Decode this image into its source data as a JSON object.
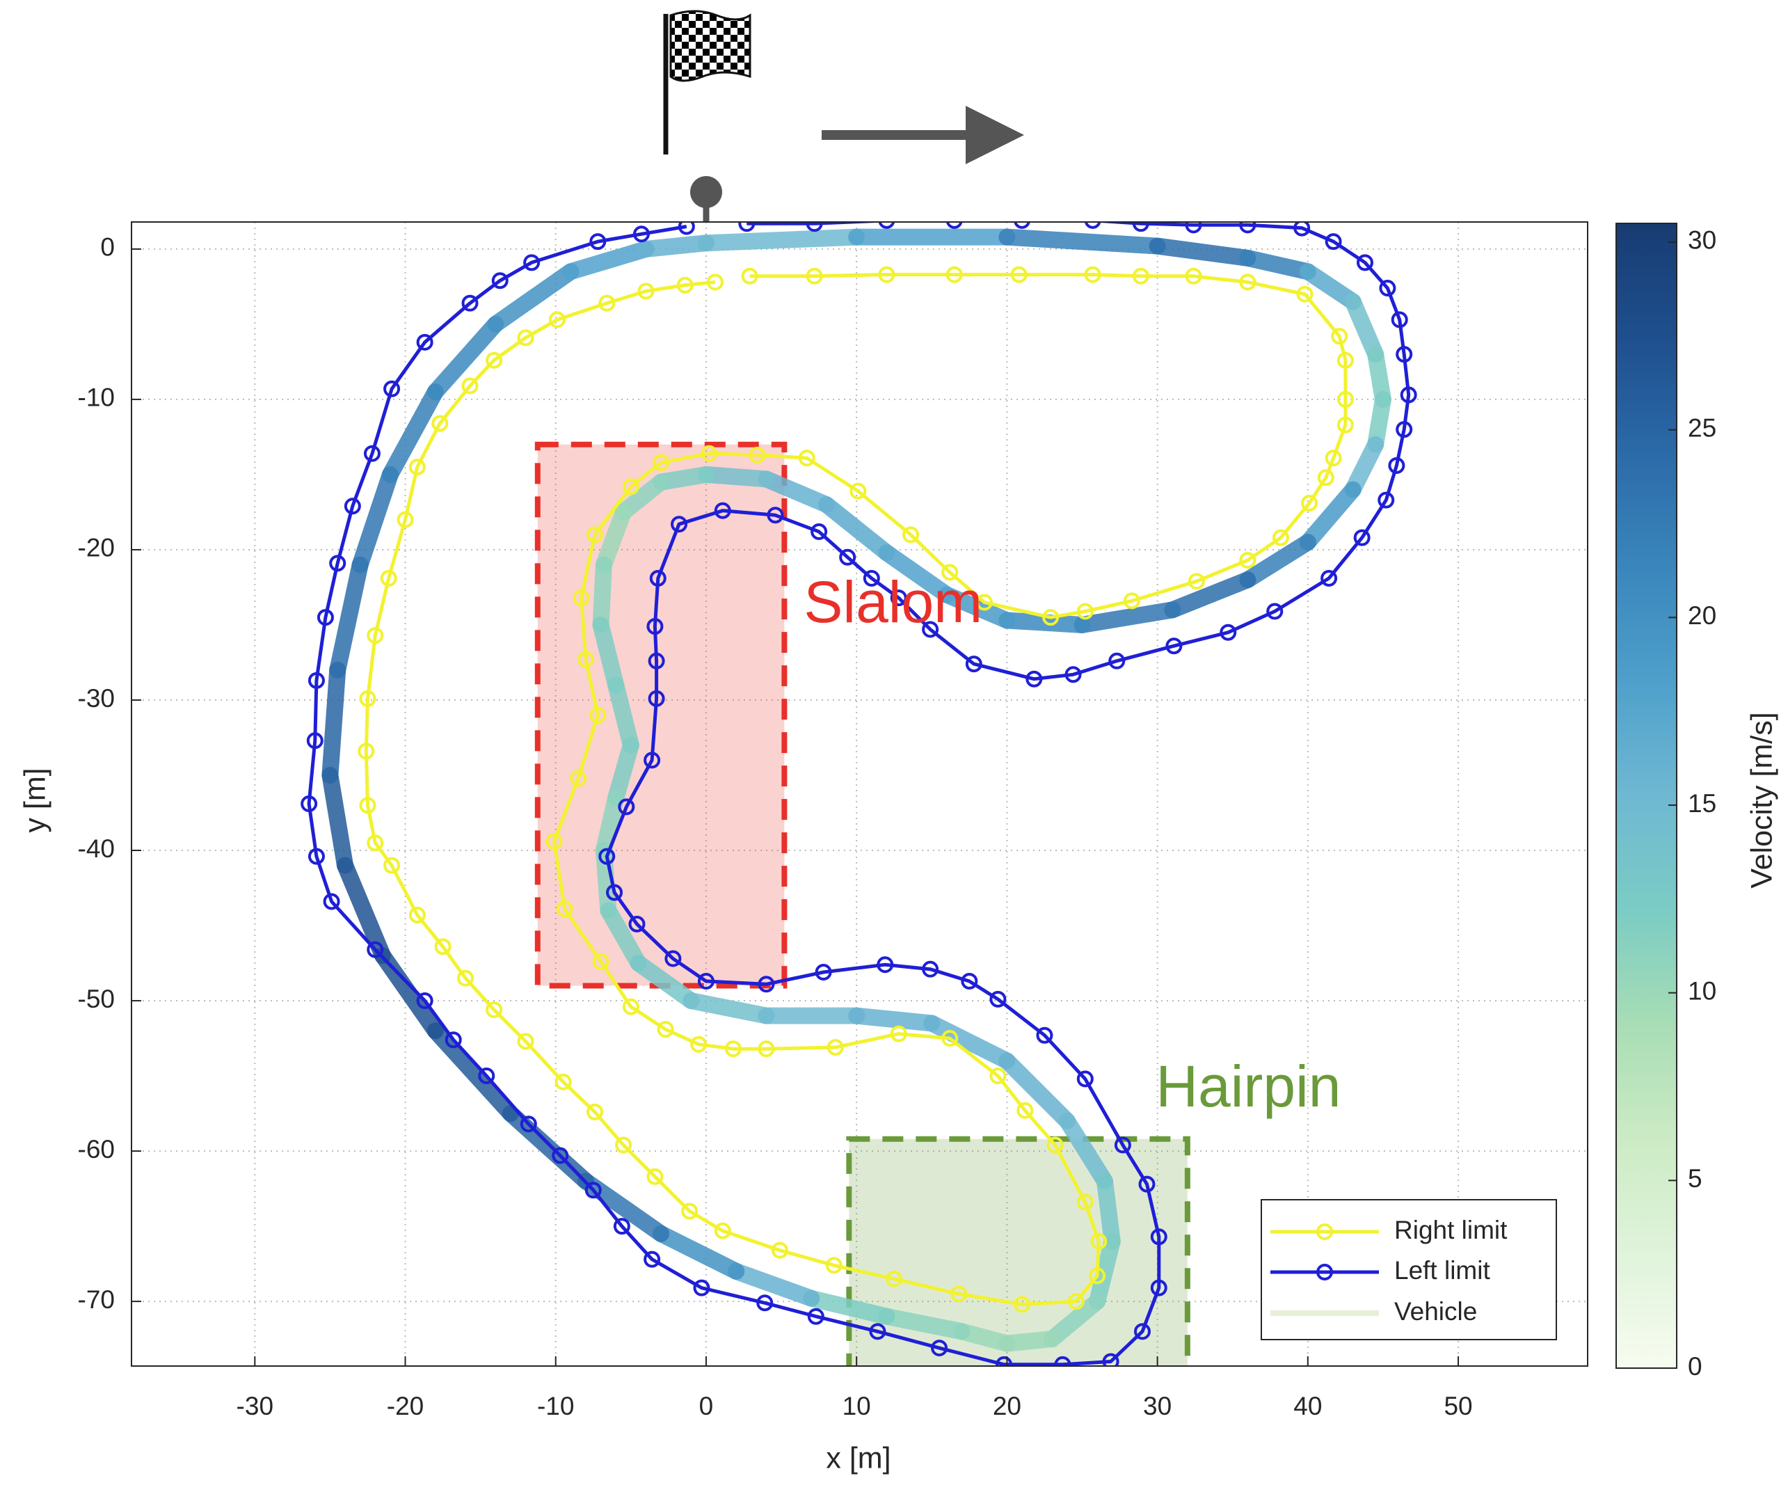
{
  "chart_data": {
    "type": "line",
    "xlabel": "x [m]",
    "ylabel": "y [m]",
    "xlim": [
      -38.2,
      58.6
    ],
    "ylim": [
      -74.3,
      1.8
    ],
    "xticks": [
      -30,
      -20,
      -10,
      0,
      10,
      20,
      30,
      40,
      50
    ],
    "yticks": [
      0,
      -10,
      -20,
      -30,
      -40,
      -50,
      -60,
      -70
    ],
    "grid": true,
    "legend": "lower right",
    "colorbar": {
      "label": "Velocity [m/s]",
      "lim": [
        0,
        30.5
      ],
      "ticks": [
        0,
        5,
        10,
        15,
        20,
        25,
        30
      ],
      "colormap": [
        "#f7fcf0",
        "#e0f3db",
        "#ccebc5",
        "#a8ddb5",
        "#7bccc4",
        "#6fb8d2",
        "#4ea0cb",
        "#3a86bc",
        "#2b6aa8",
        "#1f4f8e",
        "#173c72"
      ]
    },
    "regions": [
      {
        "label": "Slalom",
        "color": "#e8302a",
        "x": [
          -11.2,
          5.2
        ],
        "y": [
          -49,
          -13
        ]
      },
      {
        "label": "Hairpin",
        "color": "#6a9a3a",
        "x": [
          9.5,
          32
        ],
        "y": [
          -74.5,
          -59.2
        ]
      }
    ],
    "series": [
      {
        "name": "Right limit",
        "color": "#f2f230",
        "marker": "o",
        "x": [
          2.9,
          7.2,
          12,
          16.5,
          20.8,
          25.7,
          28.9,
          32.4,
          36,
          39.8,
          42.1,
          42.5,
          42.5,
          42.5,
          41.7,
          41.2,
          40.1,
          38.2,
          36,
          32.6,
          28.3,
          25.2,
          22.9,
          18.5,
          16.2,
          13.6,
          10.1,
          6.7,
          3.4,
          0.2,
          -3,
          -5,
          -7.4,
          -8.3,
          -8,
          -7.2,
          -8.5,
          -10.1,
          -9.4,
          -7,
          -5,
          -2.7,
          -0.5,
          1.8,
          4,
          8.6,
          12.8,
          16.2,
          19.4,
          21.2,
          23.2,
          25.2,
          26.1,
          26,
          24.6,
          21,
          16.8,
          12.5,
          8.5,
          4.9,
          1.1,
          -1.1,
          -3.4,
          -5.5,
          -7.4,
          -9.5,
          -12,
          -14.1,
          -16,
          -17.5,
          -19.2,
          -20.9,
          -22,
          -22.5,
          -22.6,
          -22.5,
          -22,
          -21.1,
          -20,
          -19.2,
          -17.7,
          -15.7,
          -14.1,
          -12,
          -9.9,
          -6.6,
          -4,
          -1.4,
          0.6
        ],
        "y": [
          -1.8,
          -1.8,
          -1.7,
          -1.7,
          -1.7,
          -1.7,
          -1.8,
          -1.8,
          -2.2,
          -3,
          -5.8,
          -7.4,
          -10,
          -11.7,
          -13.9,
          -15.2,
          -16.9,
          -19.2,
          -20.7,
          -22.1,
          -23.4,
          -24.1,
          -24.5,
          -23.5,
          -21.5,
          -19,
          -16.1,
          -13.9,
          -13.7,
          -13.6,
          -14.2,
          -15.8,
          -19,
          -23.2,
          -27.3,
          -31,
          -35.2,
          -39.4,
          -43.9,
          -47.4,
          -50.4,
          -51.9,
          -52.9,
          -53.2,
          -53.2,
          -53.1,
          -52.2,
          -52.5,
          -55,
          -57.3,
          -59.6,
          -63.4,
          -66,
          -68.3,
          -70,
          -70.2,
          -69.5,
          -68.5,
          -67.6,
          -66.6,
          -65.3,
          -64,
          -61.7,
          -59.6,
          -57.4,
          -55.4,
          -52.7,
          -50.6,
          -48.5,
          -46.4,
          -44.3,
          -41,
          -39.5,
          -37,
          -33.4,
          -29.9,
          -25.7,
          -21.9,
          -18,
          -14.5,
          -11.6,
          -9.1,
          -7.4,
          -5.9,
          -4.7,
          -3.6,
          -2.8,
          -2.4,
          -2.2
        ]
      },
      {
        "name": "Left limit",
        "color": "#1f1fd6",
        "marker": "o",
        "x": [
          2.7,
          7.2,
          12,
          16.5,
          21,
          25.7,
          28.9,
          32.4,
          36,
          39.6,
          41.7,
          43.8,
          45.3,
          46.1,
          46.4,
          46.7,
          46.4,
          45.9,
          45.2,
          43.6,
          41.4,
          37.8,
          34.7,
          31.1,
          27.3,
          24.4,
          21.8,
          17.8,
          14.9,
          12.8,
          11,
          9.4,
          7.5,
          4.6,
          1.1,
          -1.8,
          -3.2,
          -3.4,
          -3.3,
          -3.3,
          -3.6,
          -5.3,
          -6.6,
          -6.1,
          -4.6,
          -2.2,
          0,
          4,
          7.8,
          11.9,
          14.9,
          17.5,
          19.4,
          22.5,
          25.2,
          27.7,
          29.3,
          30.1,
          30.1,
          29,
          26.9,
          23.7,
          19.8,
          15.5,
          11.4,
          7.3,
          3.9,
          -0.3,
          -3.6,
          -5.6,
          -7.5,
          -9.7,
          -11.8,
          -14.6,
          -16.8,
          -18.7,
          -22,
          -24.9,
          -25.9,
          -26.4,
          -26,
          -25.9,
          -25.3,
          -24.5,
          -23.5,
          -22.2,
          -20.9,
          -18.7,
          -15.7,
          -13.7,
          -11.6,
          -7.2,
          -4.3,
          -1.3
        ],
        "y": [
          1.7,
          1.7,
          1.9,
          1.9,
          1.9,
          1.9,
          1.7,
          1.6,
          1.6,
          1.4,
          0.5,
          -0.9,
          -2.6,
          -4.7,
          -7,
          -9.7,
          -12,
          -14.4,
          -16.7,
          -19.2,
          -21.9,
          -24.1,
          -25.5,
          -26.4,
          -27.4,
          -28.3,
          -28.6,
          -27.6,
          -25.3,
          -23.2,
          -21.9,
          -20.5,
          -18.8,
          -17.7,
          -17.4,
          -18.3,
          -21.9,
          -25.1,
          -27.4,
          -29.9,
          -34,
          -37.1,
          -40.4,
          -42.8,
          -44.9,
          -47.2,
          -48.7,
          -48.9,
          -48.1,
          -47.6,
          -47.9,
          -48.7,
          -49.9,
          -52.3,
          -55.2,
          -59.6,
          -62.2,
          -65.7,
          -69.1,
          -72,
          -74,
          -74.2,
          -74.2,
          -73.1,
          -72,
          -71,
          -70.1,
          -69.1,
          -67.2,
          -65,
          -62.6,
          -60.3,
          -58.2,
          -55,
          -52.6,
          -50,
          -46.6,
          -43.4,
          -40.4,
          -36.9,
          -32.7,
          -28.7,
          -24.5,
          -20.9,
          -17.1,
          -13.6,
          -9.3,
          -6.2,
          -3.6,
          -2.1,
          -0.9,
          0.5,
          1,
          1.5
        ]
      },
      {
        "name": "Vehicle",
        "color": "#e8efd9",
        "x": [
          0,
          10,
          20,
          30,
          36,
          40,
          43,
          44.5,
          45,
          44.5,
          43,
          40,
          36,
          31,
          25,
          20,
          16,
          12,
          8,
          4,
          0,
          -3,
          -5.5,
          -6.8,
          -7,
          -6,
          -5,
          -6,
          -6.8,
          -6.5,
          -4.5,
          -1,
          4,
          10,
          15,
          20,
          24,
          26.5,
          27,
          26,
          23,
          20,
          17,
          12,
          7,
          2,
          -3,
          -8,
          -13,
          -18,
          -21.5,
          -24,
          -25,
          -24.5,
          -23,
          -21,
          -18,
          -14,
          -9,
          -4,
          0
        ],
        "y": [
          0.4,
          0.8,
          0.8,
          0.2,
          -0.6,
          -1.5,
          -3.5,
          -7,
          -10,
          -13,
          -16,
          -19.5,
          -22,
          -24,
          -25,
          -24.7,
          -23,
          -20.2,
          -17,
          -15.3,
          -15,
          -15.5,
          -17.5,
          -21,
          -25,
          -29,
          -33,
          -36.5,
          -40,
          -44,
          -47.5,
          -50,
          -51,
          -51,
          -51.5,
          -54,
          -58,
          -62,
          -66,
          -70,
          -72.5,
          -72.8,
          -72,
          -71,
          -69.8,
          -68,
          -65.5,
          -62,
          -57.5,
          -52,
          -47,
          -41,
          -35,
          -28,
          -21,
          -15,
          -9.5,
          -5,
          -1.5,
          0,
          0.4
        ],
        "velocity": [
          15,
          18,
          22,
          24,
          22,
          17,
          14,
          12,
          12,
          15,
          19,
          22,
          24,
          23,
          21,
          19,
          18,
          17,
          16,
          14,
          12,
          11,
          10,
          11,
          12,
          12,
          12,
          11,
          11,
          12,
          13,
          14,
          15,
          16,
          16,
          16,
          15,
          13,
          12,
          11,
          10,
          10,
          11,
          12,
          16,
          20,
          23,
          25,
          26,
          27,
          27,
          26,
          25,
          24,
          23,
          22,
          21,
          20,
          18,
          16,
          15
        ]
      }
    ]
  }
}
